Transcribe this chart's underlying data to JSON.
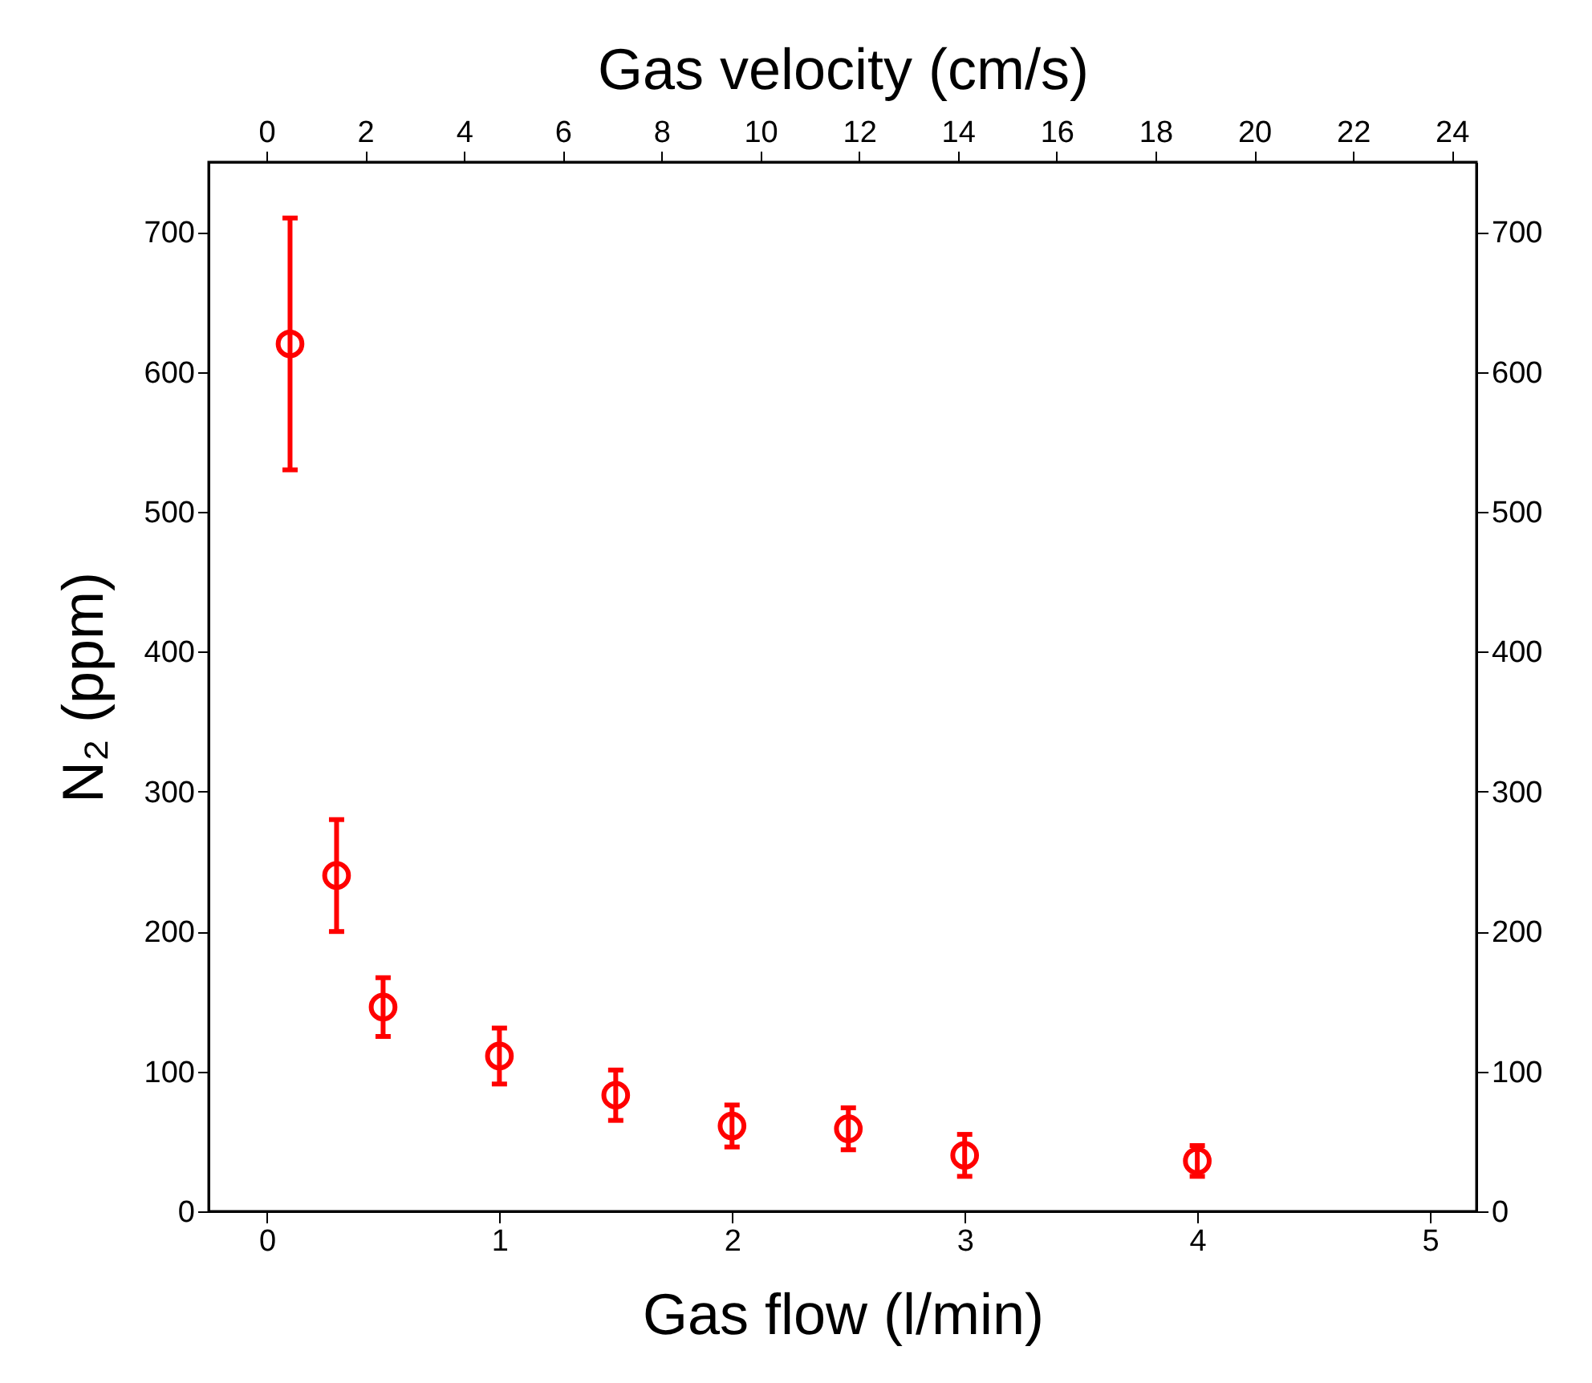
{
  "chart_data": {
    "type": "scatter",
    "xlabel": "Gas flow (l/min)",
    "ylabel": "N₂ (ppm)",
    "x2label": "Gas velocity (cm/s)",
    "x": [
      0.1,
      0.3,
      0.5,
      1,
      1.5,
      2,
      2.5,
      3,
      4
    ],
    "series": [
      {
        "color": "#ff0000",
        "values": [
          620,
          240,
          146,
          111,
          83,
          61,
          59,
          40,
          36
        ],
        "errors": [
          90,
          40,
          21,
          20,
          18,
          15,
          15,
          15,
          11
        ]
      }
    ],
    "xlim": [
      -0.25,
      5.2
    ],
    "xticks": [
      0,
      1,
      2,
      3,
      4,
      5
    ],
    "x2lim": [
      -1.17,
      24.5
    ],
    "x2ticks": [
      0,
      2,
      4,
      6,
      8,
      10,
      12,
      14,
      16,
      18,
      20,
      22,
      24
    ],
    "ylim": [
      0,
      750
    ],
    "yticks": [
      0,
      100,
      200,
      300,
      400,
      500,
      600,
      700
    ],
    "y2lim": [
      0,
      750
    ],
    "y2ticks": [
      0,
      100,
      200,
      300,
      400,
      500,
      600,
      700
    ],
    "marker": "circle",
    "grid": false
  }
}
